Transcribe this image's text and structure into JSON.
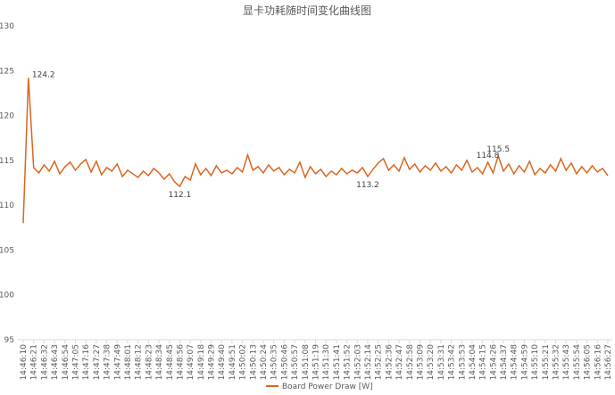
{
  "chart_data": {
    "type": "line",
    "title": "显卡功耗随时间变化曲线图",
    "categories": [
      "14:46:10",
      null,
      "14:46:21",
      null,
      "14:46:32",
      null,
      "14:46:43",
      null,
      "14:46:54",
      null,
      "14:47:05",
      null,
      "14:47:16",
      null,
      "14:47:27",
      null,
      "14:47:38",
      null,
      "14:47:49",
      null,
      "14:48:01",
      null,
      "14:48:12",
      null,
      "14:48:23",
      null,
      "14:48:34",
      null,
      "14:48:45",
      null,
      "14:48:56",
      null,
      "14:49:07",
      null,
      "14:49:18",
      null,
      "14:49:29",
      null,
      "14:49:40",
      null,
      "14:49:51",
      null,
      "14:50:02",
      null,
      "14:50:13",
      null,
      "14:50:24",
      null,
      "14:50:35",
      null,
      "14:50:46",
      null,
      "14:50:57",
      null,
      "14:51:08",
      null,
      "14:51:19",
      null,
      "14:51:30",
      null,
      "14:51:41",
      null,
      "14:51:52",
      null,
      "14:52:03",
      null,
      "14:52:14",
      null,
      "14:52:25",
      null,
      "14:52:36",
      null,
      "14:52:47",
      null,
      "14:52:58",
      null,
      "14:53:09",
      null,
      "14:53:20",
      null,
      "14:53:31",
      null,
      "14:53:42",
      null,
      "14:53:53",
      null,
      "14:54:04",
      null,
      "14:54:15",
      null,
      "14:54:26",
      null,
      "14:54:37",
      null,
      "14:54:48",
      null,
      "14:54:59",
      null,
      "14:55:10",
      null,
      "14:55:21",
      null,
      "14:55:32",
      null,
      "14:55:43",
      null,
      "14:55:54",
      null,
      "14:56:05",
      null,
      "14:56:16",
      null,
      "14:56:27"
    ],
    "series": [
      {
        "name": "Board Power Draw [W]",
        "color": "#D9661F",
        "values": [
          108,
          124.2,
          114.2,
          113.6,
          114.5,
          113.8,
          114.9,
          113.5,
          114.3,
          114.8,
          113.9,
          114.6,
          115.1,
          113.7,
          114.9,
          113.4,
          114.2,
          113.8,
          114.6,
          113.2,
          113.9,
          113.5,
          113.1,
          113.8,
          113.3,
          114.1,
          113.6,
          112.9,
          113.5,
          112.6,
          112.1,
          113.2,
          112.8,
          114.6,
          113.4,
          114.1,
          113.3,
          114.4,
          113.6,
          113.9,
          113.5,
          114.2,
          113.7,
          115.6,
          113.9,
          114.3,
          113.6,
          114.5,
          113.8,
          114.2,
          113.4,
          114.0,
          113.6,
          114.8,
          113.1,
          114.3,
          113.5,
          114.0,
          113.2,
          113.8,
          113.4,
          114.1,
          113.5,
          113.9,
          113.6,
          114.2,
          113.2,
          114.0,
          114.7,
          115.2,
          113.9,
          114.5,
          113.8,
          115.3,
          114.0,
          114.6,
          113.7,
          114.4,
          113.9,
          114.7,
          113.8,
          114.3,
          113.6,
          114.5,
          113.9,
          115.0,
          113.7,
          114.2,
          113.5,
          114.8,
          113.6,
          115.5,
          113.8,
          114.6,
          113.5,
          114.4,
          113.7,
          114.9,
          113.4,
          114.1,
          113.6,
          114.5,
          113.8,
          115.2,
          113.9,
          114.7,
          113.5,
          114.3,
          113.6,
          114.4,
          113.7,
          114.1,
          113.3
        ],
        "value_labels": [
          null,
          "124.2",
          null,
          null,
          null,
          null,
          null,
          null,
          null,
          null,
          null,
          null,
          null,
          null,
          null,
          null,
          null,
          null,
          null,
          null,
          null,
          null,
          null,
          null,
          null,
          null,
          null,
          null,
          null,
          null,
          "112.1",
          null,
          null,
          null,
          null,
          null,
          null,
          null,
          null,
          null,
          null,
          null,
          null,
          null,
          null,
          null,
          null,
          null,
          null,
          null,
          null,
          null,
          null,
          null,
          null,
          null,
          null,
          null,
          null,
          null,
          null,
          null,
          null,
          null,
          null,
          null,
          "113.2",
          null,
          null,
          null,
          null,
          null,
          null,
          null,
          null,
          null,
          null,
          null,
          null,
          null,
          null,
          null,
          null,
          null,
          null,
          null,
          null,
          null,
          null,
          "114.8",
          null,
          "115.5",
          null,
          null,
          null,
          null,
          null,
          null,
          null,
          null,
          null,
          null,
          null,
          null,
          null,
          null,
          null,
          null,
          null,
          null,
          null,
          null,
          null
        ]
      }
    ],
    "ylim": [
      95,
      130
    ],
    "yticks": [
      95,
      100,
      105,
      110,
      115,
      120,
      125,
      130
    ],
    "legend": "bottom"
  }
}
